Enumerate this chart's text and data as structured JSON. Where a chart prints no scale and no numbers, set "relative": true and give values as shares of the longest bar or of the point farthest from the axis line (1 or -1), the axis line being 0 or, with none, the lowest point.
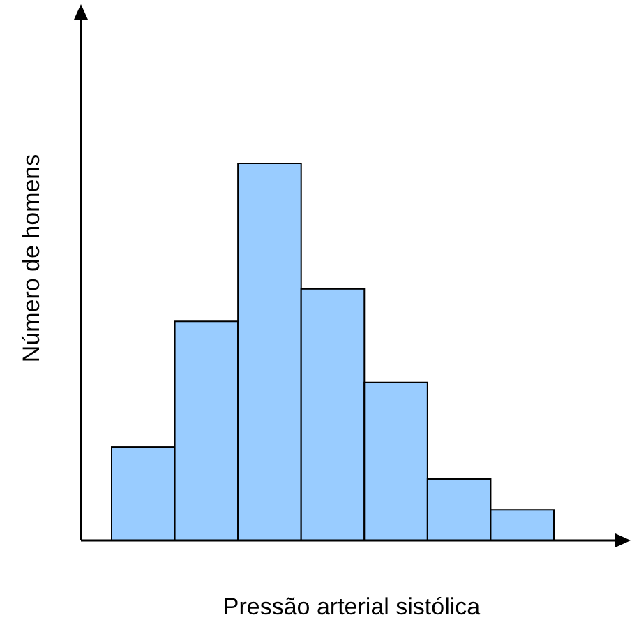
{
  "chart_data": {
    "type": "bar",
    "relative": true,
    "xlabel": "Pressão arterial sistólica",
    "ylabel": "Número de homens",
    "categories": [
      null,
      null,
      null,
      null,
      null,
      null,
      null
    ],
    "values": [
      0.248,
      0.581,
      1,
      0.667,
      0.419,
      0.163,
      0.081
    ],
    "color": "#99ccff"
  }
}
